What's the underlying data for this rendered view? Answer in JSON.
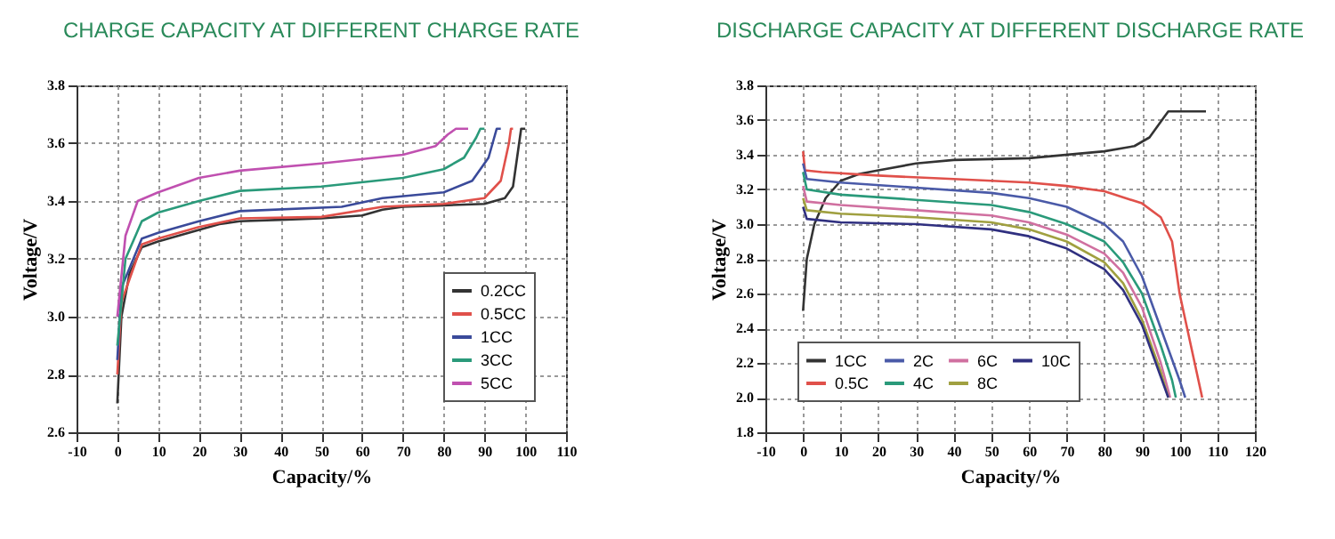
{
  "chart_data": [
    {
      "type": "line",
      "title": "CHARGE CAPACITY AT DIFFERENT CHARGE RATE",
      "xlabel": "Capacity/%",
      "ylabel": "Voltage/V",
      "xlim": [
        -10,
        110
      ],
      "xticks": [
        -10,
        0,
        10,
        20,
        30,
        40,
        50,
        60,
        70,
        80,
        90,
        100,
        110
      ],
      "ylim": [
        2.6,
        3.8
      ],
      "yticks": [
        2.6,
        2.8,
        {
          "value": 3,
          "label": "3.0"
        },
        3.2,
        3.4,
        3.6,
        3.8
      ],
      "grid": true,
      "legend": "bottom right",
      "marker": "none",
      "line_style": "solid",
      "series": [
        {
          "name": "0.2CC",
          "color": "#333333",
          "x": [
            0,
            1,
            3,
            6,
            10,
            15,
            20,
            25,
            30,
            40,
            50,
            60,
            65,
            70,
            80,
            90,
            95,
            97,
            98,
            99,
            100
          ],
          "values": [
            2.7,
            3.0,
            3.15,
            3.24,
            3.26,
            3.28,
            3.3,
            3.32,
            3.33,
            3.335,
            3.34,
            3.35,
            3.37,
            3.38,
            3.385,
            3.39,
            3.41,
            3.45,
            3.55,
            3.65,
            3.65
          ]
        },
        {
          "name": "0.5CC",
          "color": "#e0504a",
          "x": [
            0,
            1,
            6,
            10,
            20,
            30,
            50,
            65,
            80,
            90,
            94,
            96,
            96.5,
            97
          ],
          "values": [
            2.8,
            3.05,
            3.25,
            3.27,
            3.31,
            3.34,
            3.345,
            3.38,
            3.39,
            3.41,
            3.47,
            3.6,
            3.65,
            3.65
          ]
        },
        {
          "name": "1CC",
          "color": "#3a4a9a",
          "x": [
            0,
            1,
            6,
            10,
            20,
            30,
            55,
            65,
            80,
            87,
            91,
            93,
            94
          ],
          "values": [
            2.85,
            3.1,
            3.27,
            3.29,
            3.33,
            3.365,
            3.38,
            3.41,
            3.43,
            3.47,
            3.55,
            3.65,
            3.65
          ]
        },
        {
          "name": "3CC",
          "color": "#2a9a7a",
          "x": [
            0,
            2,
            6,
            10,
            20,
            30,
            50,
            70,
            80,
            85,
            88,
            89,
            90
          ],
          "values": [
            2.9,
            3.2,
            3.33,
            3.36,
            3.4,
            3.435,
            3.45,
            3.48,
            3.51,
            3.55,
            3.62,
            3.65,
            3.65
          ]
        },
        {
          "name": "5CC",
          "color": "#c050b0",
          "x": [
            0,
            2,
            5,
            10,
            20,
            30,
            50,
            70,
            78,
            81,
            83,
            86
          ],
          "values": [
            3.0,
            3.28,
            3.4,
            3.43,
            3.48,
            3.505,
            3.53,
            3.56,
            3.59,
            3.63,
            3.65,
            3.65
          ]
        }
      ]
    },
    {
      "type": "line",
      "title": "DISCHARGE CAPACITY AT DIFFERENT DISCHARGE RATE",
      "xlabel": "Capacity/%",
      "ylabel": "Voltage/V",
      "xlim": [
        -10,
        120
      ],
      "xticks": [
        -10,
        0,
        10,
        20,
        30,
        40,
        50,
        60,
        70,
        80,
        90,
        100,
        110,
        120
      ],
      "ylim": [
        1.8,
        3.8
      ],
      "yticks": [
        1.8,
        {
          "value": 2,
          "label": "2.0"
        },
        2.2,
        2.4,
        2.6,
        2.8,
        {
          "value": 3,
          "label": "3.0"
        },
        3.2,
        3.4,
        3.6,
        3.8
      ],
      "grid": true,
      "legend": "bottom left",
      "marker": "none",
      "line_style": "solid",
      "series": [
        {
          "name": "1CC",
          "color": "#333333",
          "x": [
            0,
            1,
            3,
            6,
            10,
            15,
            20,
            30,
            40,
            60,
            80,
            88,
            92,
            96,
            97,
            107
          ],
          "values": [
            2.5,
            2.8,
            3.0,
            3.15,
            3.25,
            3.29,
            3.31,
            3.35,
            3.37,
            3.38,
            3.42,
            3.45,
            3.5,
            3.62,
            3.65,
            3.65
          ]
        },
        {
          "name": "0.5C",
          "color": "#e0504a",
          "x": [
            0,
            0.5,
            5,
            20,
            40,
            60,
            70,
            80,
            90,
            95,
            98,
            100,
            103,
            105,
            106
          ],
          "values": [
            3.42,
            3.31,
            3.3,
            3.28,
            3.26,
            3.24,
            3.22,
            3.19,
            3.12,
            3.04,
            2.9,
            2.6,
            2.3,
            2.1,
            2.0
          ]
        },
        {
          "name": "2C",
          "color": "#4a5aa8",
          "x": [
            0,
            1,
            10,
            30,
            50,
            60,
            70,
            80,
            85,
            90,
            95,
            100,
            101.5
          ],
          "values": [
            3.35,
            3.26,
            3.24,
            3.21,
            3.18,
            3.15,
            3.1,
            3.0,
            2.9,
            2.7,
            2.4,
            2.1,
            2.0
          ]
        },
        {
          "name": "4C",
          "color": "#2a9a7a",
          "x": [
            0,
            1,
            10,
            30,
            50,
            60,
            70,
            80,
            85,
            90,
            95,
            98,
            99
          ],
          "values": [
            3.3,
            3.2,
            3.17,
            3.14,
            3.11,
            3.07,
            3.0,
            2.9,
            2.78,
            2.6,
            2.3,
            2.1,
            2.0
          ]
        },
        {
          "name": "6C",
          "color": "#d070a0",
          "x": [
            0,
            1,
            10,
            30,
            50,
            60,
            70,
            80,
            85,
            90,
            95,
            97.5
          ],
          "values": [
            3.22,
            3.13,
            3.11,
            3.08,
            3.05,
            3.01,
            2.94,
            2.83,
            2.72,
            2.52,
            2.2,
            2.0
          ]
        },
        {
          "name": "8C",
          "color": "#a0a040",
          "x": [
            0,
            1,
            10,
            30,
            50,
            60,
            70,
            80,
            85,
            90,
            95,
            97
          ],
          "values": [
            3.15,
            3.08,
            3.06,
            3.04,
            3.01,
            2.97,
            2.9,
            2.78,
            2.66,
            2.45,
            2.15,
            2.0
          ]
        },
        {
          "name": "10C",
          "color": "#303080",
          "x": [
            0,
            1,
            10,
            30,
            50,
            60,
            70,
            80,
            85,
            90,
            95,
            97
          ],
          "values": [
            3.1,
            3.03,
            3.01,
            3.0,
            2.97,
            2.93,
            2.86,
            2.74,
            2.62,
            2.42,
            2.12,
            2.0
          ]
        }
      ]
    }
  ]
}
